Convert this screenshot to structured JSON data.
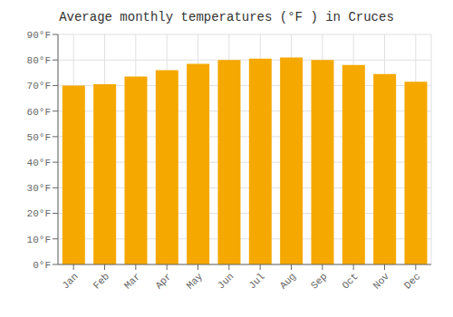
{
  "chart_data": {
    "type": "bar",
    "title": "Average monthly temperatures (°F ) in Cruces",
    "categories": [
      "Jan",
      "Feb",
      "Mar",
      "Apr",
      "May",
      "Jun",
      "Jul",
      "Aug",
      "Sep",
      "Oct",
      "Nov",
      "Dec"
    ],
    "values": [
      70,
      70.5,
      73.5,
      76,
      78.5,
      80,
      80.5,
      81,
      80,
      78,
      74.5,
      71.5
    ],
    "color": "#F5A800",
    "ylim": [
      0,
      90
    ],
    "yticks": [
      {
        "value": 0,
        "label": "0°F"
      },
      {
        "value": 10,
        "label": "10°F"
      },
      {
        "value": 20,
        "label": "20°F"
      },
      {
        "value": 30,
        "label": "30°F"
      },
      {
        "value": 40,
        "label": "40°F"
      },
      {
        "value": 50,
        "label": "50°F"
      },
      {
        "value": 60,
        "label": "60°F"
      },
      {
        "value": 70,
        "label": "70°F"
      },
      {
        "value": 80,
        "label": "80°F"
      },
      {
        "value": 90,
        "label": "90°F"
      }
    ],
    "grid": true
  }
}
